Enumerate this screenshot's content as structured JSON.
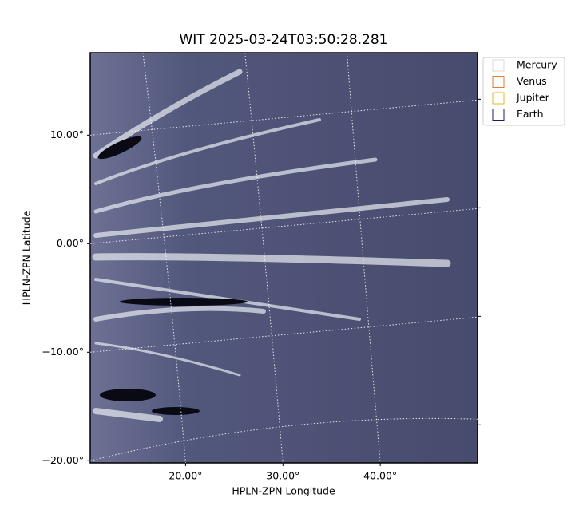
{
  "chart_data": {
    "type": "image",
    "title": "WIT 2025-03-24T03:50:28.281",
    "xlabel": "HPLN-ZPN Longitude",
    "ylabel": "HPLN-ZPN Latitude",
    "xlim": [
      10.2,
      50
    ],
    "ylim": [
      -20.2,
      17.6
    ],
    "xticks": [
      {
        "value": 20,
        "label": "20.00°"
      },
      {
        "value": 30,
        "label": "30.00°"
      },
      {
        "value": 40,
        "label": "40.00°"
      }
    ],
    "yticks": [
      {
        "value": -20,
        "label": "−20.00°"
      },
      {
        "value": -10,
        "label": "−10.00°"
      },
      {
        "value": 0,
        "label": "0.00°"
      },
      {
        "value": 10,
        "label": "10.00°"
      }
    ],
    "grid": true,
    "legend": [
      {
        "name": "Mercury",
        "color": "#d9d9d9"
      },
      {
        "name": "Venus",
        "color": "#e07b39"
      },
      {
        "name": "Jupiter",
        "color": "#e6b422"
      },
      {
        "name": "Earth",
        "color": "#1a1a7a"
      }
    ]
  }
}
